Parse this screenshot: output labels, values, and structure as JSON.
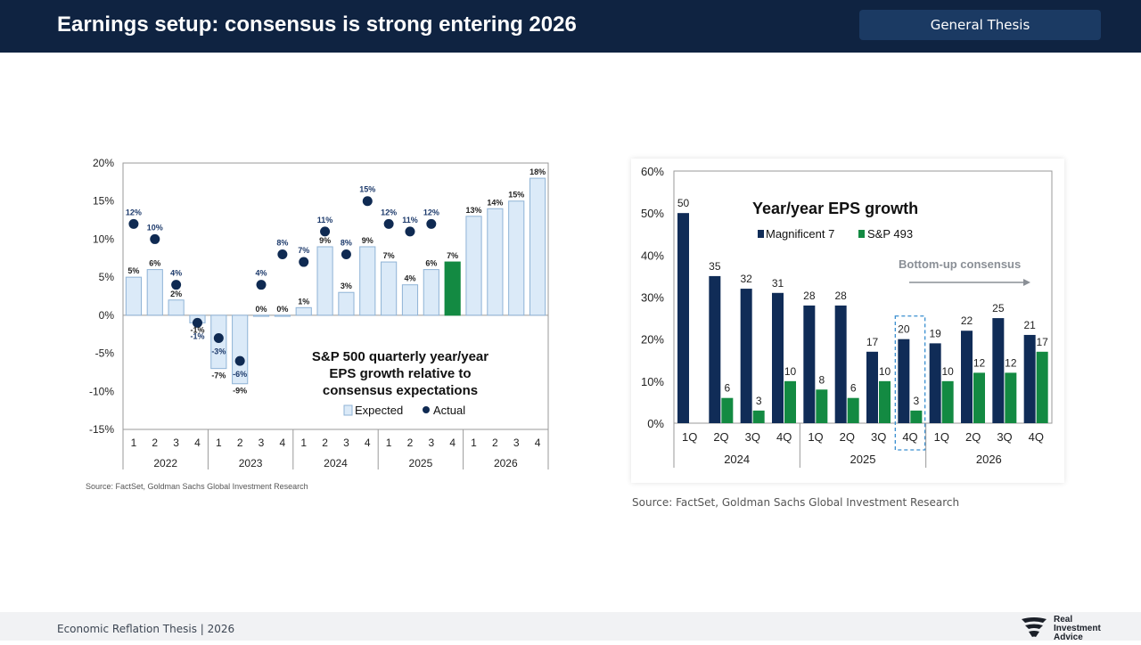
{
  "header": {
    "title": "Earnings setup: consensus is strong entering 2026",
    "tag": "General Thesis"
  },
  "footer": {
    "text": "Economic Reflation Thesis | 2026",
    "logo_lines": [
      "Real",
      "Investment",
      "Advice"
    ]
  },
  "colors": {
    "header_bg": "#0f2341",
    "tag_bg": "#1b3a63",
    "expected_fill": "#dbeaf8",
    "expected_stroke": "#8fb3d6",
    "actual_dot": "#0f2a52",
    "last_actual_bar": "#138a42",
    "mag7": "#102c57",
    "sp493": "#138a42"
  },
  "chart_data": [
    {
      "type": "bar",
      "title": "S&P 500 quarterly year/year EPS growth relative to consensus expectations",
      "title_lines": [
        "S&P 500 quarterly year/year",
        "EPS growth relative to",
        "consensus expectations"
      ],
      "source": "Source: FactSet, Goldman Sachs Global Investment Research",
      "quarters": [
        "1",
        "2",
        "3",
        "4",
        "1",
        "2",
        "3",
        "4",
        "1",
        "2",
        "3",
        "4",
        "1",
        "2",
        "3",
        "4",
        "1",
        "2",
        "3",
        "4"
      ],
      "years": [
        "2022",
        "2023",
        "2024",
        "2025",
        "2026"
      ],
      "yticks": [
        "20%",
        "15%",
        "10%",
        "5%",
        "0%",
        "-5%",
        "-10%",
        "-15%"
      ],
      "ylim": [
        -15,
        20
      ],
      "series": [
        {
          "name": "Expected",
          "values": [
            5,
            6,
            2,
            -1,
            -7,
            -9,
            0,
            0,
            1,
            9,
            3,
            9,
            7,
            4,
            6,
            7,
            13,
            14,
            15,
            18
          ],
          "labels": [
            "5%",
            "6%",
            "2%",
            "-1%",
            "-7%",
            "-9%",
            "0%",
            "0%",
            "1%",
            "9%",
            "3%",
            "9%",
            "7%",
            "4%",
            "6%",
            "7%",
            "13%",
            "14%",
            "15%",
            "18%"
          ]
        },
        {
          "name": "Actual",
          "values": [
            12,
            10,
            4,
            -1,
            -3,
            -6,
            4,
            8,
            7,
            11,
            8,
            15,
            12,
            11,
            12,
            null,
            null,
            null,
            null,
            null
          ],
          "labels": [
            "12%",
            "10%",
            "4%",
            "-1%",
            "-3%",
            "-6%",
            "4%",
            "8%",
            "7%",
            "11%",
            "8%",
            "15%",
            "12%",
            "11%",
            "12%",
            "",
            "",
            "",
            "",
            ""
          ]
        }
      ],
      "legend": [
        "Expected",
        "Actual"
      ]
    },
    {
      "type": "bar",
      "title": "Year/year EPS growth",
      "annotation": "Bottom-up consensus",
      "source": "Source: FactSet, Goldman Sachs Global Investment Research",
      "categories": [
        "1Q",
        "2Q",
        "3Q",
        "4Q",
        "1Q",
        "2Q",
        "3Q",
        "4Q",
        "1Q",
        "2Q",
        "3Q",
        "4Q"
      ],
      "years": [
        "2024",
        "2025",
        "2026"
      ],
      "yticks": [
        "60%",
        "50%",
        "40%",
        "30%",
        "20%",
        "10%",
        "0%"
      ],
      "ylim": [
        0,
        60
      ],
      "series": [
        {
          "name": "Magnificent 7",
          "values": [
            50,
            35,
            32,
            31,
            28,
            28,
            17,
            20,
            19,
            22,
            25,
            21
          ],
          "labels": [
            "50",
            "35",
            "32",
            "31",
            "28",
            "28",
            "17",
            "20",
            "19",
            "22",
            "25",
            "21"
          ]
        },
        {
          "name": "S&P 493",
          "values": [
            null,
            6,
            3,
            10,
            8,
            6,
            10,
            3,
            10,
            12,
            12,
            17
          ],
          "labels": [
            "",
            "6",
            "3",
            "10",
            "8",
            "6",
            "10",
            "3",
            "10",
            "12",
            "12",
            "17"
          ]
        }
      ]
    }
  ]
}
